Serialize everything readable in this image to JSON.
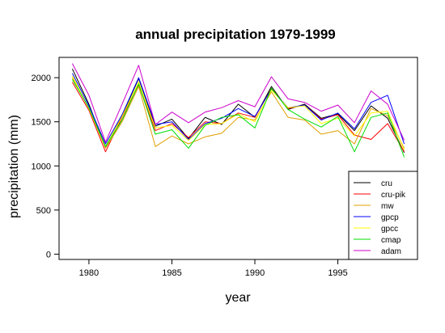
{
  "chart_data": {
    "type": "line",
    "title": "annual precipitation 1979-1999",
    "xlabel": "year",
    "ylabel": "precipitation (mm)",
    "xlim": [
      1978.2,
      1999.8
    ],
    "ylim": [
      -60,
      2230
    ],
    "x_ticks": [
      1980,
      1985,
      1990,
      1995
    ],
    "y_ticks": [
      0,
      500,
      1000,
      1500,
      2000
    ],
    "grid": false,
    "legend_position": "bottom-right",
    "x": [
      1979,
      1980,
      1981,
      1982,
      1983,
      1984,
      1985,
      1986,
      1987,
      1988,
      1989,
      1990,
      1991,
      1992,
      1993,
      1994,
      1995,
      1996,
      1997,
      1998,
      1999
    ],
    "series": [
      {
        "name": "cru",
        "color": "#000000",
        "values": [
          2100,
          1700,
          1210,
          1570,
          1990,
          1450,
          1530,
          1310,
          1550,
          1470,
          1700,
          1550,
          1900,
          1640,
          1700,
          1540,
          1590,
          1400,
          1680,
          1540,
          1150
        ]
      },
      {
        "name": "cru-pik",
        "color": "#ff0000",
        "values": [
          1950,
          1630,
          1160,
          1550,
          1920,
          1400,
          1480,
          1320,
          1500,
          1480,
          1600,
          1550,
          1880,
          1650,
          1690,
          1530,
          1580,
          1350,
          1300,
          1480,
          1160
        ]
      },
      {
        "name": "mw",
        "color": "#e0a000",
        "values": [
          2000,
          1650,
          1200,
          1500,
          1900,
          1220,
          1340,
          1250,
          1330,
          1370,
          1550,
          1520,
          1840,
          1550,
          1520,
          1360,
          1400,
          1250,
          1650,
          1570,
          1200
        ]
      },
      {
        "name": "gpcp",
        "color": "#0000ff",
        "values": [
          2050,
          1680,
          1250,
          1580,
          2000,
          1470,
          1500,
          1300,
          1480,
          1540,
          1650,
          1560,
          1870,
          1660,
          1690,
          1520,
          1600,
          1420,
          1720,
          1800,
          1250
        ]
      },
      {
        "name": "gpcc",
        "color": "#ffff00",
        "values": [
          2020,
          1650,
          1220,
          1560,
          1950,
          1430,
          1460,
          1290,
          1470,
          1480,
          1590,
          1500,
          1860,
          1660,
          1680,
          1480,
          1540,
          1340,
          1600,
          1620,
          1180
        ]
      },
      {
        "name": "cmap",
        "color": "#00dd00",
        "values": [
          1980,
          1660,
          1220,
          1520,
          1930,
          1360,
          1410,
          1200,
          1460,
          1550,
          1580,
          1430,
          1880,
          1640,
          1530,
          1440,
          1560,
          1160,
          1550,
          1600,
          1100
        ]
      },
      {
        "name": "adam",
        "color": "#cc00cc",
        "values": [
          2160,
          1800,
          1270,
          1700,
          2140,
          1470,
          1610,
          1490,
          1610,
          1660,
          1740,
          1670,
          2010,
          1760,
          1720,
          1620,
          1690,
          1490,
          1850,
          1700,
          1290
        ]
      }
    ]
  }
}
